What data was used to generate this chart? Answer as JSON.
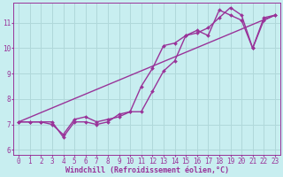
{
  "title": "",
  "xlabel": "Windchill (Refroidissement éolien,°C)",
  "ylabel": "",
  "bg_color": "#c8eef0",
  "grid_color": "#b0d8da",
  "line_color": "#993399",
  "marker": "D",
  "markersize": 2,
  "linewidth": 1.0,
  "xlim": [
    -0.5,
    23.5
  ],
  "ylim": [
    5.8,
    11.8
  ],
  "xticks": [
    0,
    1,
    2,
    3,
    4,
    5,
    6,
    7,
    8,
    9,
    10,
    11,
    12,
    13,
    14,
    15,
    16,
    17,
    18,
    19,
    20,
    21,
    22,
    23
  ],
  "yticks": [
    6,
    7,
    8,
    9,
    10,
    11
  ],
  "xlabel_fontsize": 6,
  "tick_fontsize": 5.5,
  "series1_x": [
    0,
    1,
    2,
    3,
    4,
    5,
    6,
    7,
    8,
    9,
    10,
    11,
    12,
    13,
    14,
    15,
    16,
    17,
    18,
    19,
    20,
    21,
    22,
    23
  ],
  "series1_y": [
    7.1,
    7.1,
    7.1,
    7.1,
    6.5,
    7.1,
    7.1,
    7.0,
    7.1,
    7.4,
    7.5,
    8.5,
    9.2,
    10.1,
    10.2,
    10.5,
    10.7,
    10.5,
    11.5,
    11.3,
    11.1,
    10.0,
    11.1,
    11.3
  ],
  "series2_x": [
    0,
    1,
    2,
    3,
    4,
    5,
    6,
    7,
    8,
    9,
    10,
    11,
    12,
    13,
    14,
    15,
    16,
    17,
    18,
    19,
    20,
    21,
    22,
    23
  ],
  "series2_y": [
    7.1,
    7.1,
    7.1,
    7.0,
    6.6,
    7.2,
    7.3,
    7.1,
    7.2,
    7.3,
    7.5,
    7.5,
    8.3,
    9.1,
    9.5,
    10.5,
    10.6,
    10.8,
    11.2,
    11.6,
    11.3,
    10.0,
    11.2,
    11.3
  ],
  "series3_x": [
    0,
    23
  ],
  "series3_y": [
    7.1,
    11.3
  ]
}
